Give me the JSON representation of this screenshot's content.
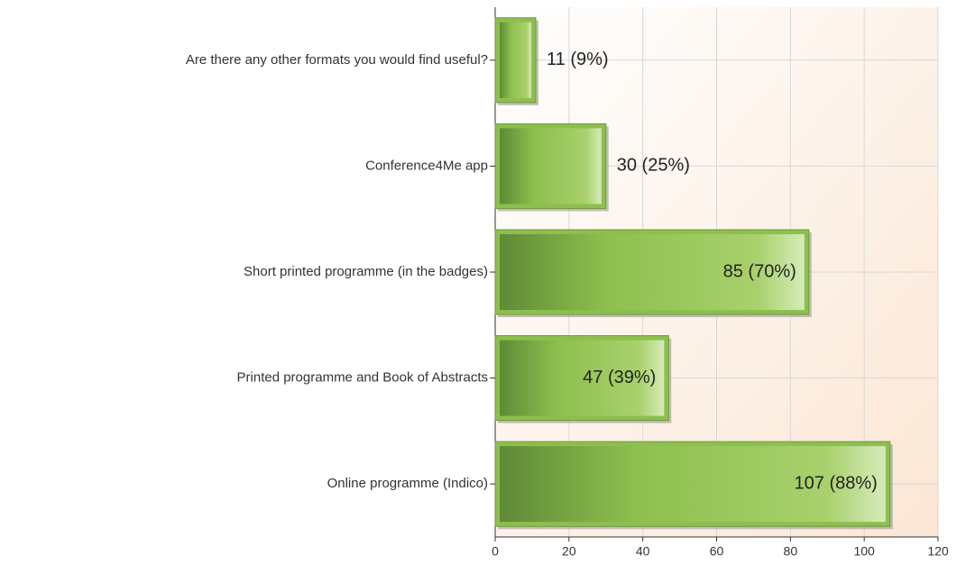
{
  "chart_data": {
    "type": "bar",
    "orientation": "horizontal",
    "categories": [
      "Are there any other formats you would find useful?",
      "Conference4Me app",
      "Short printed programme (in the badges)",
      "Printed programme and Book of Abstracts",
      "Online programme (Indico)"
    ],
    "values": [
      11,
      30,
      85,
      47,
      107
    ],
    "value_labels": [
      "11 (9%)",
      "30 (25%)",
      "85 (70%)",
      "47 (39%)",
      "107 (88%)"
    ],
    "color": "#8dbf4e",
    "xlim": [
      0,
      120
    ],
    "xticks": [
      0,
      20,
      40,
      60,
      80,
      100,
      120
    ],
    "grid": true
  }
}
